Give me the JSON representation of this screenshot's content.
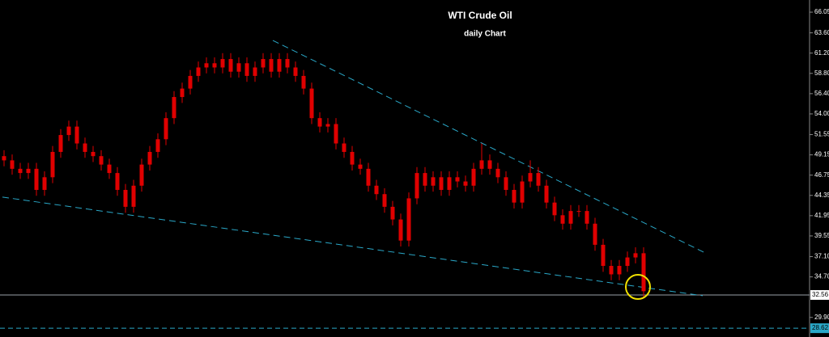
{
  "chart_data": {
    "type": "candlestick",
    "title": "WTI Crude Oil",
    "subtitle": "daily Chart",
    "color": "#e00000",
    "trend_color": "#2aa8c8",
    "ylim": [
      27.58,
      67.49
    ],
    "yticks": [
      66.05,
      {
        "value": 63.6,
        "label": "63.60"
      },
      {
        "value": 61.2,
        "label": "61.20"
      },
      {
        "value": 58.8,
        "label": "58.80"
      },
      {
        "value": 56.4,
        "label": "56.40"
      },
      {
        "value": 54,
        "label": "54.00"
      },
      51.55,
      49.15,
      46.75,
      44.35,
      41.95,
      39.55,
      {
        "value": 37.1,
        "label": "37.10"
      },
      {
        "value": 34.7,
        "label": "34.70"
      },
      {
        "value": 29.9,
        "label": "29.90"
      }
    ],
    "price_line": 32.56,
    "support_line": 28.62,
    "open": [
      49.0,
      48.5,
      47.5,
      47.0,
      47.5,
      45.0,
      46.5,
      49.5,
      51.5,
      52.5,
      50.5,
      49.5,
      49.0,
      48.0,
      47.0,
      45.0,
      43.0,
      45.5,
      48.0,
      49.5,
      51.0,
      53.5,
      56.0,
      57.0,
      58.5,
      59.5,
      60.0,
      59.5,
      60.5,
      59.0,
      60.0,
      58.5,
      59.5,
      60.5,
      59.0,
      60.5,
      59.5,
      58.5,
      57.0,
      53.5,
      52.5,
      52.8,
      50.5,
      49.5,
      48.0,
      47.5,
      45.5,
      44.5,
      43.0,
      41.5,
      39.0,
      44.0,
      47.0,
      45.5,
      46.5,
      45.0,
      46.5,
      46.0,
      45.5,
      47.5,
      48.5,
      47.5,
      46.5,
      45.0,
      43.5,
      46.0,
      47.0,
      45.5,
      43.5,
      42.0,
      41.0,
      42.5,
      42.5,
      41.0,
      38.5,
      36.0,
      35.0,
      36.0,
      37.0,
      37.5
    ],
    "high": [
      49.7,
      49.2,
      48.2,
      48.2,
      48.2,
      47.2,
      50.2,
      52.2,
      53.2,
      53.2,
      51.2,
      50.2,
      49.7,
      48.7,
      47.7,
      45.7,
      46.2,
      48.7,
      50.2,
      51.7,
      54.2,
      56.7,
      57.7,
      59.2,
      60.2,
      60.7,
      60.7,
      61.2,
      61.2,
      60.7,
      60.7,
      60.2,
      61.2,
      61.2,
      61.2,
      61.2,
      60.2,
      59.2,
      57.7,
      54.2,
      53.5,
      53.5,
      51.2,
      50.2,
      48.7,
      48.2,
      46.2,
      45.2,
      43.7,
      42.2,
      44.7,
      47.7,
      47.7,
      47.2,
      47.2,
      47.2,
      47.2,
      46.7,
      48.2,
      50.5,
      49.2,
      48.2,
      47.2,
      45.7,
      46.7,
      48.5,
      47.7,
      46.2,
      44.2,
      42.7,
      43.2,
      43.2,
      43.2,
      41.7,
      39.2,
      36.7,
      36.7,
      37.7,
      38.2,
      38.2
    ],
    "low": [
      47.8,
      46.8,
      46.3,
      46.3,
      44.3,
      44.3,
      45.8,
      48.8,
      50.8,
      49.8,
      48.8,
      48.3,
      47.3,
      46.3,
      44.3,
      42.3,
      42.3,
      44.8,
      47.3,
      48.8,
      50.3,
      52.8,
      55.3,
      56.3,
      57.8,
      58.8,
      58.8,
      58.8,
      58.3,
      58.3,
      57.8,
      57.8,
      58.8,
      58.3,
      58.3,
      58.8,
      57.8,
      56.3,
      52.8,
      51.8,
      51.8,
      49.8,
      48.8,
      47.3,
      46.8,
      44.8,
      43.8,
      42.3,
      40.8,
      38.3,
      38.3,
      43.3,
      44.8,
      44.8,
      44.3,
      44.3,
      45.3,
      44.8,
      44.8,
      46.8,
      46.8,
      45.8,
      44.3,
      42.8,
      42.8,
      45.3,
      44.8,
      42.8,
      41.3,
      40.3,
      40.3,
      41.8,
      40.3,
      37.8,
      35.3,
      34.3,
      34.3,
      35.3,
      36.3,
      32.3
    ],
    "close": [
      48.5,
      47.5,
      47.0,
      47.5,
      45.0,
      46.5,
      49.5,
      51.5,
      52.5,
      50.5,
      49.5,
      49.0,
      48.0,
      47.0,
      45.0,
      43.0,
      45.5,
      48.0,
      49.5,
      51.0,
      53.5,
      56.0,
      57.0,
      58.5,
      59.5,
      60.0,
      59.5,
      60.5,
      59.0,
      60.0,
      58.5,
      59.5,
      60.5,
      59.0,
      60.5,
      59.5,
      58.5,
      57.0,
      53.5,
      52.5,
      52.8,
      50.5,
      49.5,
      48.0,
      47.5,
      45.5,
      44.5,
      43.0,
      41.5,
      39.0,
      44.0,
      47.0,
      45.5,
      46.5,
      45.0,
      46.5,
      46.0,
      45.5,
      47.5,
      48.5,
      47.5,
      46.5,
      45.0,
      43.5,
      46.0,
      47.0,
      45.5,
      43.5,
      42.0,
      41.0,
      42.5,
      42.5,
      41.0,
      38.5,
      36.0,
      35.0,
      36.0,
      37.0,
      37.5,
      33.0
    ],
    "trendlines": [
      {
        "start": [
          33.7,
          62.7
        ],
        "end": [
          87.3,
          37.45
        ]
      },
      {
        "start": [
          0.3,
          44.15
        ],
        "end": [
          86.8,
          32.47
        ]
      }
    ]
  }
}
